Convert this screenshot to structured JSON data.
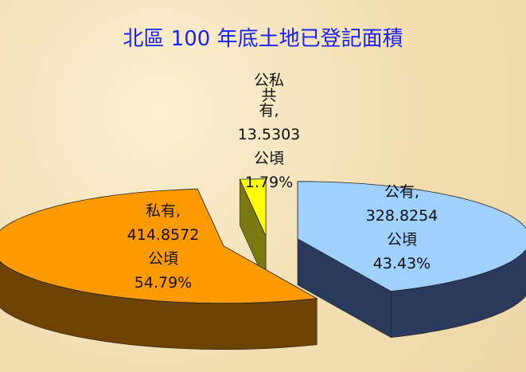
{
  "chart_data": {
    "type": "pie3d",
    "title": "北區 100 年底土地已登記面積",
    "categories": [
      "公有,",
      "私有,",
      "公私共有,"
    ],
    "values": [
      328.8254,
      414.8572,
      13.5303
    ],
    "unit": "公頃",
    "percent_labels": [
      "43.43%",
      "54.79%",
      "1.79%"
    ],
    "colors": [
      "#9fd0ff",
      "#ff9a00",
      "#ffff00"
    ],
    "side_colors": [
      "#2a3a5c",
      "#6e4200",
      "#7a7a10"
    ]
  }
}
